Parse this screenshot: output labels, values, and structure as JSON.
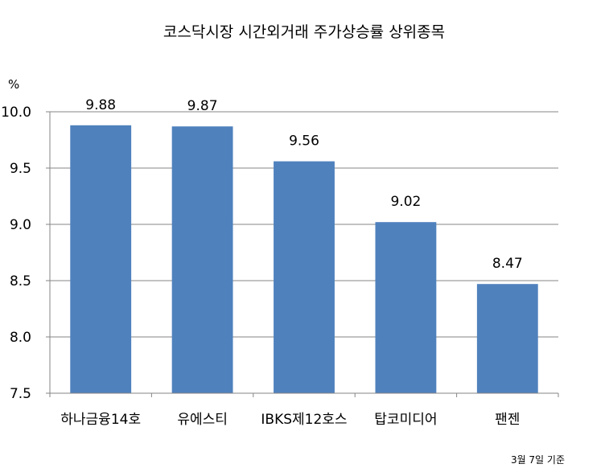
{
  "chart_data": {
    "type": "bar",
    "title": "코스닥시장 시간외거래  주가상승률 상위종목",
    "ylabel": "%",
    "categories": [
      "하나금융14호",
      "유에스티",
      "IBKS제12호스",
      "탑코미디어",
      "팬젠"
    ],
    "values": [
      9.88,
      9.87,
      9.56,
      9.02,
      8.47
    ],
    "data_labels": [
      "9.88",
      "9.87",
      "9.56",
      "9.02",
      "8.47"
    ],
    "ylim": [
      7.5,
      10.0
    ],
    "yticks": [
      "7.5",
      "8.0",
      "8.5",
      "9.0",
      "9.5",
      "10.0"
    ],
    "grid": true,
    "legend": "none",
    "bar_color": "#4f81bd",
    "note": "3월 7일 기준"
  }
}
